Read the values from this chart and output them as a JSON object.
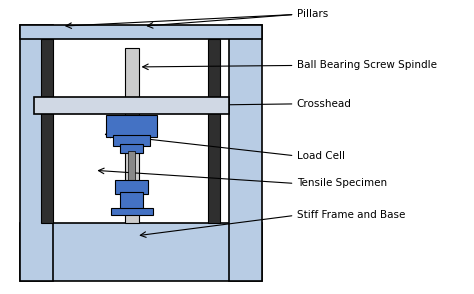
{
  "fig_width": 4.74,
  "fig_height": 2.94,
  "dpi": 100,
  "bg_color": "#ffffff",
  "frame_color": "#b8cce4",
  "frame_edge": "#000000",
  "pillar_dark": "#2f2f2f",
  "crosshead_color": "#d0d8e4",
  "blue_color": "#4472c4",
  "spindle_color": "#cccccc",
  "specimen_color": "#888888",
  "annot_fs": 7.5,
  "pillars_arrow1": [
    0.13,
    0.915,
    0.63,
    0.955
  ],
  "pillars_arrow2": [
    0.305,
    0.915,
    0.63,
    0.955
  ],
  "pillars_label": [
    0.635,
    0.955,
    "Pillars"
  ],
  "spindle_arrow": [
    0.295,
    0.775,
    0.63,
    0.78
  ],
  "spindle_label": [
    0.635,
    0.78,
    "Ball Bearing Screw Spindle"
  ],
  "crosshead_arrow": [
    0.245,
    0.64,
    0.63,
    0.648
  ],
  "crosshead_label": [
    0.635,
    0.648,
    "Crosshead"
  ],
  "loadcell_arrow": [
    0.215,
    0.545,
    0.63,
    0.47
  ],
  "loadcell_label": [
    0.635,
    0.47,
    "Load Cell"
  ],
  "specimen_arrow": [
    0.2,
    0.42,
    0.63,
    0.375
  ],
  "specimen_label": [
    0.635,
    0.375,
    "Tensile Specimen"
  ],
  "base_arrow": [
    0.29,
    0.195,
    0.63,
    0.265
  ],
  "base_label": [
    0.635,
    0.265,
    "Stiff Frame and Base"
  ]
}
